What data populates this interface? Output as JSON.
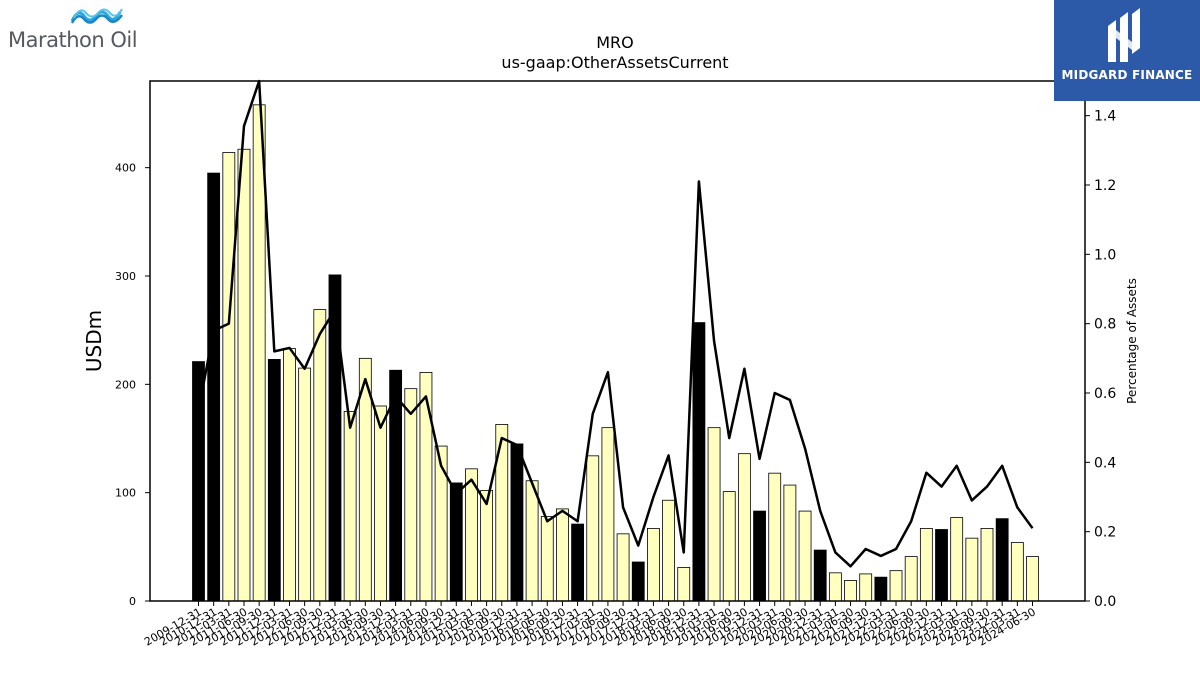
{
  "logos": {
    "left": {
      "name": "Marathon Oil",
      "icon": "marathon-wave-icon",
      "color": "#555a60",
      "accent": "#29a8e0"
    },
    "right": {
      "name": "MIDGARD FINANCE",
      "icon": "midgard-m-icon",
      "color": "#2c5aa8"
    }
  },
  "chart_data": {
    "type": "bar",
    "title": "MRO",
    "subtitle": "us-gaap:OtherAssetsCurrent",
    "ylabel": "USDm",
    "y2label": "Percentage of Assets",
    "ylim": [
      0,
      480
    ],
    "y2lim": [
      0,
      1.5
    ],
    "yticks": [
      0,
      100,
      200,
      300,
      400
    ],
    "y2ticks": [
      0.0,
      0.2,
      0.4,
      0.6,
      0.8,
      1.0,
      1.2,
      1.4
    ],
    "grid": false,
    "colors": {
      "annual": "#000000",
      "quarter": "#ffffc0",
      "line": "#000000"
    },
    "categories": [
      "2009-12-31",
      "2010-12-31",
      "2011-03-31",
      "2011-06-30",
      "2011-09-30",
      "2011-12-31",
      "2012-03-31",
      "2012-06-30",
      "2012-09-30",
      "2012-12-31",
      "2013-03-31",
      "2013-06-30",
      "2013-09-30",
      "2013-12-31",
      "2014-03-31",
      "2014-06-30",
      "2014-09-30",
      "2014-12-31",
      "2015-03-31",
      "2015-06-30",
      "2015-09-30",
      "2015-12-31",
      "2016-03-31",
      "2016-06-30",
      "2016-09-30",
      "2016-12-31",
      "2017-03-31",
      "2017-06-30",
      "2017-09-30",
      "2017-12-31",
      "2018-03-31",
      "2018-06-30",
      "2018-09-30",
      "2018-12-31",
      "2019-03-31",
      "2019-06-30",
      "2019-09-30",
      "2019-12-31",
      "2020-03-31",
      "2020-06-30",
      "2020-09-30",
      "2020-12-31",
      "2021-03-31",
      "2021-06-30",
      "2021-09-30",
      "2021-12-31",
      "2022-03-31",
      "2022-06-30",
      "2022-09-30",
      "2022-12-31",
      "2023-03-31",
      "2023-06-30",
      "2023-09-30",
      "2023-12-31",
      "2024-03-31",
      "2024-06-30"
    ],
    "annual": [
      true,
      true,
      false,
      false,
      false,
      true,
      false,
      false,
      false,
      true,
      false,
      false,
      false,
      true,
      false,
      false,
      false,
      true,
      false,
      false,
      false,
      true,
      false,
      false,
      false,
      true,
      false,
      false,
      false,
      true,
      false,
      false,
      false,
      true,
      false,
      false,
      false,
      true,
      false,
      false,
      false,
      true,
      false,
      false,
      false,
      true,
      false,
      false,
      false,
      true,
      false,
      false,
      false,
      true,
      false,
      false
    ],
    "series": [
      {
        "name": "",
        "axis": "left",
        "values": [
          221,
          395,
          414,
          417,
          458,
          223,
          233,
          215,
          269,
          301,
          175,
          224,
          180,
          213,
          196,
          211,
          143,
          109,
          122,
          102,
          163,
          145,
          111,
          78,
          85,
          71,
          134,
          160,
          62,
          36,
          67,
          93,
          31,
          257,
          160,
          101,
          136,
          83,
          118,
          107,
          83,
          47,
          26,
          19,
          25,
          22,
          28,
          41,
          67,
          66,
          77,
          58,
          67,
          76,
          54,
          41
        ]
      },
      {
        "name": "",
        "axis": "right",
        "values": [
          0.55,
          0.78,
          0.8,
          1.37,
          1.5,
          0.72,
          0.73,
          0.67,
          0.77,
          0.84,
          0.5,
          0.64,
          0.5,
          0.59,
          0.54,
          0.59,
          0.39,
          0.31,
          0.35,
          0.28,
          0.47,
          0.45,
          0.34,
          0.23,
          0.26,
          0.23,
          0.54,
          0.66,
          0.27,
          0.16,
          0.3,
          0.42,
          0.14,
          1.21,
          0.75,
          0.47,
          0.67,
          0.41,
          0.6,
          0.58,
          0.44,
          0.26,
          0.14,
          0.1,
          0.15,
          0.13,
          0.15,
          0.23,
          0.37,
          0.33,
          0.39,
          0.29,
          0.33,
          0.39,
          0.27,
          0.21
        ]
      }
    ]
  }
}
